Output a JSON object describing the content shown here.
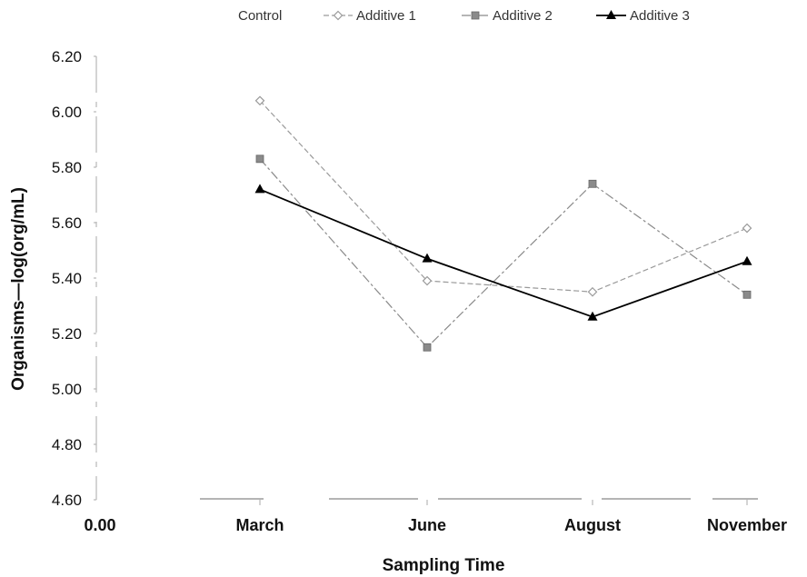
{
  "chart_data": {
    "type": "line",
    "title": "",
    "xlabel": "Sampling Time",
    "ylabel": "Organisms—log(org/mL)",
    "categories": [
      "March",
      "June",
      "August",
      "November"
    ],
    "x_origin_label": "0.00",
    "ylim": [
      4.6,
      6.2
    ],
    "yticks": [
      "6.20",
      "6.00",
      "5.80",
      "5.60",
      "5.40",
      "5.20",
      "5.00",
      "4.80",
      "4.60"
    ],
    "grid": false,
    "legend_position": "top",
    "series": [
      {
        "name": "Control",
        "values": [
          null,
          null,
          null,
          null
        ],
        "color": "#bbbbbb",
        "marker": "none",
        "dash": "solid"
      },
      {
        "name": "Additive 1",
        "values": [
          6.04,
          5.39,
          5.35,
          5.58
        ],
        "color": "#9a9a9a",
        "marker": "diamond",
        "dash": "dashed"
      },
      {
        "name": "Additive 2",
        "values": [
          5.83,
          5.15,
          5.74,
          5.34
        ],
        "color": "#8a8a8a",
        "marker": "square",
        "dash": "dashdot"
      },
      {
        "name": "Additive 3",
        "values": [
          5.72,
          5.47,
          5.26,
          5.46
        ],
        "color": "#000000",
        "marker": "triangle",
        "dash": "solid"
      }
    ]
  }
}
